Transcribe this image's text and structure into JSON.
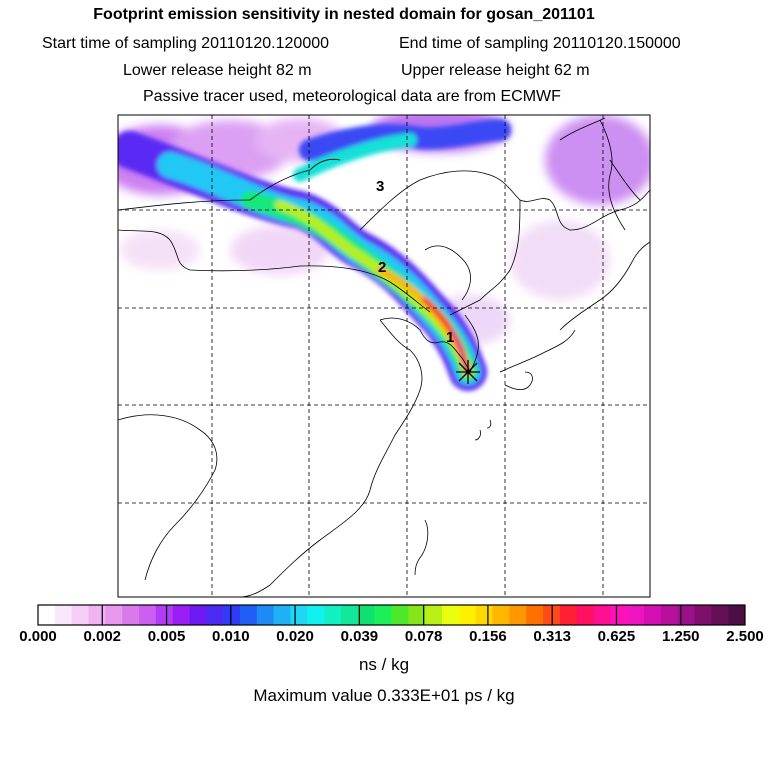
{
  "header": {
    "title": "Footprint emission sensitivity in nested domain for gosan_201101",
    "start_time": "Start time of sampling 20110120.120000",
    "end_time": "End time of sampling 20110120.150000",
    "lower_height": "Lower release height   82 m",
    "upper_height": "Upper release height   62 m",
    "tracer_note": "Passive tracer used, meteorological data are from ECMWF"
  },
  "map": {
    "markers": [
      {
        "label": "3"
      },
      {
        "label": "2"
      },
      {
        "label": "1"
      }
    ],
    "receptor": "star"
  },
  "colorbar": {
    "colors": [
      "#ffffff",
      "#fbe7fb",
      "#f6cff6",
      "#eeb3f0",
      "#e897ef",
      "#d87aec",
      "#cc5ff0",
      "#b23cf5",
      "#9b1ff5",
      "#6e19f2",
      "#4b2af4",
      "#2f3cf5",
      "#1f5ff5",
      "#1f8af6",
      "#20b0f5",
      "#20d6f5",
      "#10f2f0",
      "#12f0c3",
      "#10e89a",
      "#10e070",
      "#1cf058",
      "#4ee82a",
      "#84e518",
      "#b8f018",
      "#e8ff10",
      "#fff000",
      "#ffd800",
      "#ffb800",
      "#ff9800",
      "#ff7000",
      "#ff4a1a",
      "#ff2033",
      "#ff1060",
      "#ff1092",
      "#ff10b8",
      "#ee14c0",
      "#d410b4",
      "#b8109c",
      "#9a1088",
      "#7e106c",
      "#640f56",
      "#4a0f44"
    ],
    "labels": [
      "0.000",
      "0.002",
      "0.005",
      "0.010",
      "0.020",
      "0.039",
      "0.078",
      "0.156",
      "0.313",
      "0.625",
      "1.250",
      "2.500"
    ],
    "units": "ns / kg"
  },
  "footer": {
    "max_value": "Maximum value  0.333E+01 ps / kg"
  }
}
